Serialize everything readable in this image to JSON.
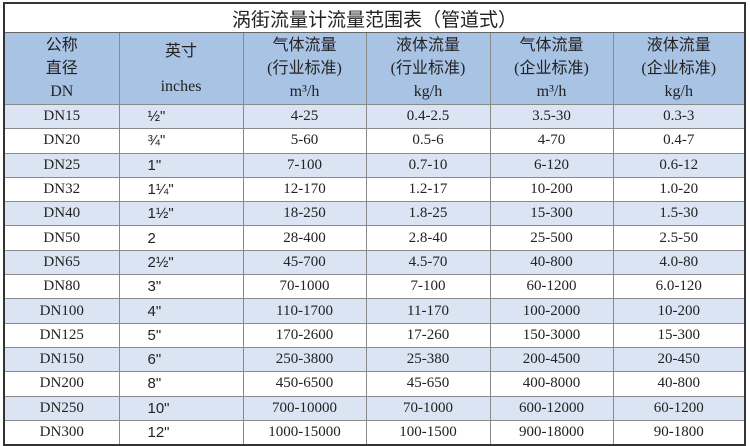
{
  "title": "涡街流量计流量范围表（管道式）",
  "headers": [
    [
      "公称",
      "直径",
      "DN"
    ],
    [
      "英寸",
      "inches"
    ],
    [
      "气体流量",
      "(行业标准)",
      "m³/h"
    ],
    [
      "液体流量",
      "(行业标准)",
      "kg/h"
    ],
    [
      "气体流量",
      "(企业标准)",
      "m³/h"
    ],
    [
      "液体流量",
      "(企业标准)",
      "kg/h"
    ]
  ],
  "rows": [
    [
      "DN15",
      "½\"",
      "4-25",
      "0.4-2.5",
      "3.5-30",
      "0.3-3"
    ],
    [
      "DN20",
      "¾\"",
      "5-60",
      "0.5-6",
      "4-70",
      "0.4-7"
    ],
    [
      "DN25",
      "1\"",
      "7-100",
      "0.7-10",
      "6-120",
      "0.6-12"
    ],
    [
      "DN32",
      "1¼\"",
      "12-170",
      "1.2-17",
      "10-200",
      "1.0-20"
    ],
    [
      "DN40",
      "1½\"",
      "18-250",
      "1.8-25",
      "15-300",
      "1.5-30"
    ],
    [
      "DN50",
      "2",
      "28-400",
      "2.8-40",
      "25-500",
      "2.5-50"
    ],
    [
      "DN65",
      "2½\"",
      "45-700",
      "4.5-70",
      "40-800",
      "4.0-80"
    ],
    [
      "DN80",
      "3\"",
      "70-1000",
      "7-100",
      "60-1200",
      "6.0-120"
    ],
    [
      "DN100",
      "4\"",
      "110-1700",
      "11-170",
      "100-2000",
      "10-200"
    ],
    [
      "DN125",
      "5\"",
      "170-2600",
      "17-260",
      "150-3000",
      "15-300"
    ],
    [
      "DN150",
      "6\"",
      "250-3800",
      "25-380",
      "200-4500",
      "20-450"
    ],
    [
      "DN200",
      "8\"",
      "450-6500",
      "45-650",
      "400-8000",
      "40-800"
    ],
    [
      "DN250",
      "10\"",
      "700-10000",
      "70-1000",
      "600-12000",
      "60-1200"
    ],
    [
      "DN300",
      "12\"",
      "1000-15000",
      "100-1500",
      "900-18000",
      "90-1800"
    ]
  ],
  "colors": {
    "header": "#a9c3e5",
    "alt_row": "#dae4f3",
    "row": "#ffffff"
  }
}
